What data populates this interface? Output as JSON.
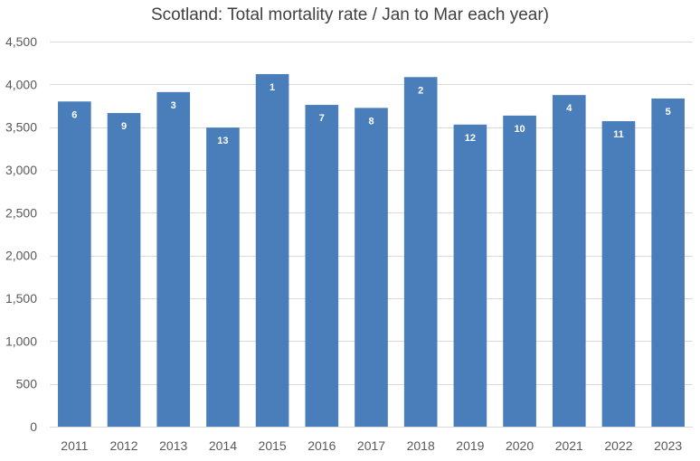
{
  "chart_data": {
    "type": "bar",
    "title": "Scotland: Total mortality rate / Jan to Mar each year)",
    "xlabel": "",
    "ylabel": "",
    "ylim": [
      0,
      4500
    ],
    "y_ticks": [
      0,
      500,
      1000,
      1500,
      2000,
      2500,
      3000,
      3500,
      4000,
      4500
    ],
    "y_tick_labels": [
      "0",
      "500",
      "1,000",
      "1,500",
      "2,000",
      "2,500",
      "3,000",
      "3,500",
      "4,000",
      "4,500"
    ],
    "grid": true,
    "categories": [
      "2011",
      "2012",
      "2013",
      "2014",
      "2015",
      "2016",
      "2017",
      "2018",
      "2019",
      "2020",
      "2021",
      "2022",
      "2023"
    ],
    "values": [
      3800,
      3665,
      3910,
      3495,
      4120,
      3760,
      3725,
      4085,
      3530,
      3635,
      3875,
      3570,
      3835
    ],
    "data_labels": [
      "6",
      "9",
      "3",
      "13",
      "1",
      "7",
      "8",
      "2",
      "12",
      "10",
      "4",
      "11",
      "5"
    ],
    "bar_color": "#4a7ebb",
    "label_color": "#ffffff",
    "grid_color": "#d9d9d9",
    "text_color": "#595959"
  }
}
